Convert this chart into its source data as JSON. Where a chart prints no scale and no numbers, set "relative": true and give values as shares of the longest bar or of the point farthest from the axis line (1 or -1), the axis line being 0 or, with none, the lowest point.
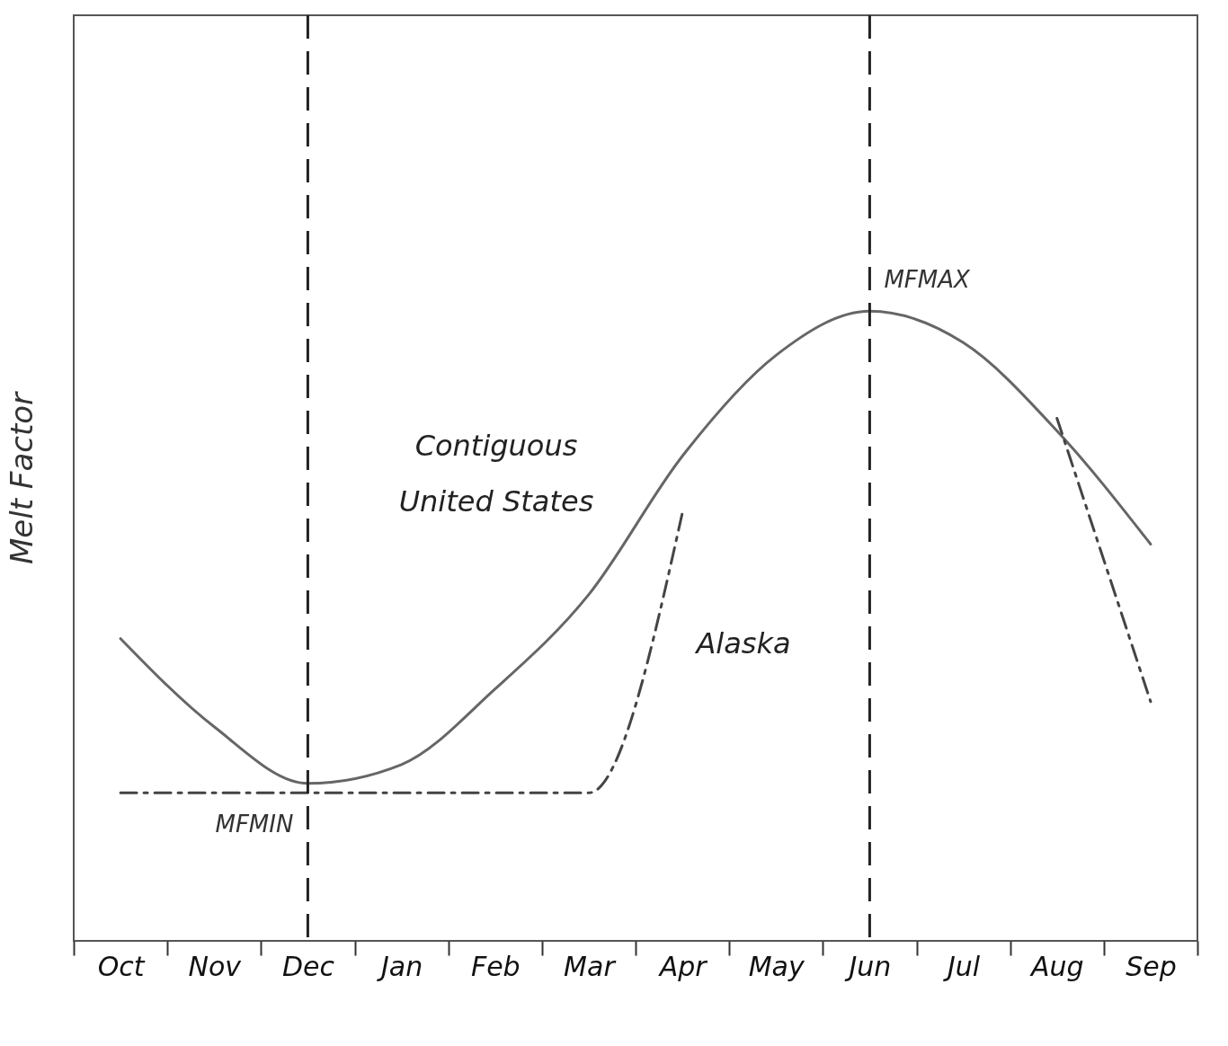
{
  "chart_data": {
    "type": "line",
    "relative": true,
    "ylabel": "Melt Factor",
    "categories": [
      "Oct",
      "Nov",
      "Dec",
      "Jan",
      "Feb",
      "Mar",
      "Apr",
      "May",
      "Jun",
      "Jul",
      "Aug",
      "Sep"
    ],
    "series": [
      {
        "name": "Contiguous United States",
        "color": "#666666",
        "line_style": "solid",
        "values": [
          0.48,
          0.34,
          0.25,
          0.28,
          0.4,
          0.55,
          0.77,
          0.93,
          1.0,
          0.95,
          0.81,
          0.63
        ]
      },
      {
        "name": "Alaska",
        "color": "#444444",
        "line_style": "dashed",
        "values": [
          0.235,
          0.235,
          0.235,
          0.235,
          0.235,
          0.235,
          0.68,
          null,
          null,
          null,
          0.83,
          0.38
        ]
      }
    ],
    "ref_lines": [
      {
        "axis": "x",
        "value": "Dec",
        "color": "#222222",
        "line_style": "dashed"
      },
      {
        "axis": "x",
        "value": "Jun",
        "color": "#222222",
        "line_style": "dashed"
      }
    ],
    "annotations": [
      {
        "text": "MFMAX",
        "x": "Jun",
        "y": 1.0
      },
      {
        "text": "MFMIN",
        "x": "Dec",
        "y": 0.25
      }
    ],
    "grid": false,
    "marker": "none"
  }
}
